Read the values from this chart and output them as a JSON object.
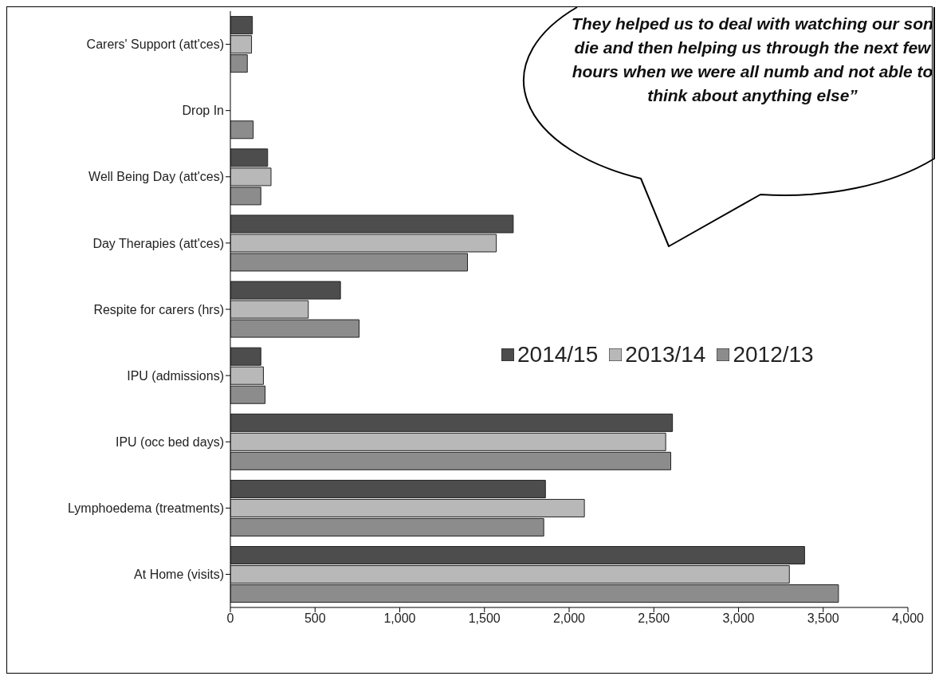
{
  "chart_data": {
    "type": "bar",
    "orientation": "horizontal",
    "categories": [
      "Carers' Support (att'ces)",
      "Drop In",
      "Well Being Day (att'ces)",
      "Day Therapies (att'ces)",
      "Respite for carers (hrs)",
      "IPU (admissions)",
      "IPU (occ bed days)",
      "Lymphoedema (treatments)",
      "At Home (visits)"
    ],
    "series": [
      {
        "name": "2014/15",
        "color": "#4d4d4d",
        "values": [
          130,
          null,
          220,
          1670,
          650,
          180,
          2610,
          1860,
          3390
        ]
      },
      {
        "name": "2013/14",
        "color": "#b8b8b8",
        "values": [
          125,
          null,
          240,
          1570,
          460,
          195,
          2570,
          2090,
          3300
        ]
      },
      {
        "name": "2012/13",
        "color": "#8c8c8c",
        "values": [
          100,
          135,
          180,
          1400,
          760,
          205,
          2600,
          1850,
          3590
        ]
      }
    ],
    "xlim": [
      0,
      4000
    ],
    "xticks": [
      0,
      500,
      {
        "value": 1000,
        "label": "1,000"
      },
      {
        "value": 1500,
        "label": "1,500"
      },
      {
        "value": 2000,
        "label": "2,000"
      },
      {
        "value": 2500,
        "label": "2,500"
      },
      {
        "value": 3000,
        "label": "3,000"
      },
      {
        "value": 3500,
        "label": "3,500"
      },
      {
        "value": 4000,
        "label": "4,000"
      }
    ],
    "legend": "right",
    "annotations": [
      "They helped us to deal with watching our son die and then helping us through the next few hours when we were all numb and not able to think about anything else”"
    ]
  }
}
